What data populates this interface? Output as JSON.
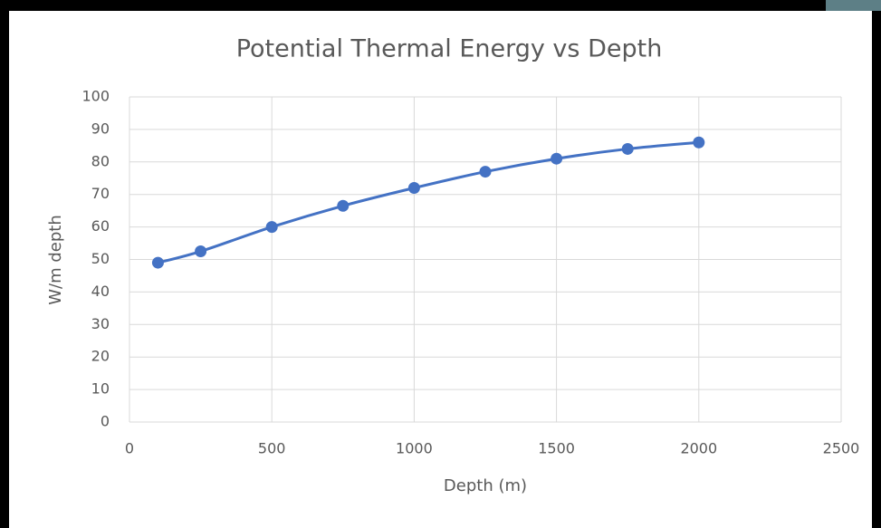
{
  "chart_data": {
    "type": "scatter",
    "title": "Potential Thermal Energy vs Depth",
    "x_label": "Depth (m)",
    "y_label": "W/m depth",
    "series": [
      {
        "name": "W/m depth",
        "color": "#4472c4",
        "x": [
          100,
          250,
          500,
          750,
          1000,
          1250,
          1500,
          1750,
          2000
        ],
        "values": [
          49,
          52.5,
          60,
          66.5,
          72,
          77,
          81,
          84,
          86
        ]
      }
    ],
    "xlim": [
      0,
      2500
    ],
    "xticks": [
      0,
      500,
      1000,
      1500,
      2000,
      2500
    ],
    "ylim": [
      0,
      100
    ],
    "yticks": [
      0,
      10,
      20,
      30,
      40,
      50,
      60,
      70,
      80,
      90,
      100
    ],
    "grid": true,
    "smooth": true
  }
}
